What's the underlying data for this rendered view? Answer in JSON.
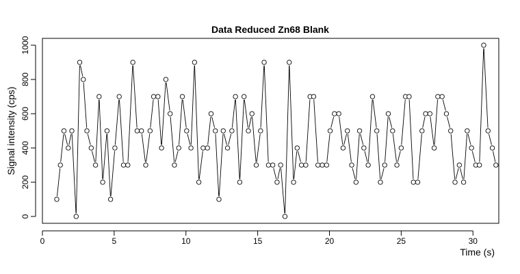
{
  "chart_data": {
    "type": "line",
    "title": "Data Reduced Zn68 Blank",
    "xlabel": "Time (s)",
    "ylabel": "Signal intensity (cps)",
    "xlim": [
      0,
      31.8
    ],
    "ylim": [
      -40,
      1040
    ],
    "x_ticks": [
      0,
      5,
      10,
      15,
      20,
      25,
      30
    ],
    "y_ticks": [
      0,
      200,
      400,
      600,
      800,
      1000
    ],
    "grid": false,
    "marker": "open-circle",
    "series": [
      {
        "values": [
          [
            1.0,
            100
          ],
          [
            1.25,
            300
          ],
          [
            1.5,
            500
          ],
          [
            1.8,
            400
          ],
          [
            2.05,
            500
          ],
          [
            2.35,
            0
          ],
          [
            2.6,
            900
          ],
          [
            2.85,
            800
          ],
          [
            3.1,
            500
          ],
          [
            3.4,
            400
          ],
          [
            3.7,
            300
          ],
          [
            3.95,
            700
          ],
          [
            4.2,
            200
          ],
          [
            4.5,
            500
          ],
          [
            4.75,
            100
          ],
          [
            5.05,
            400
          ],
          [
            5.35,
            700
          ],
          [
            5.65,
            300
          ],
          [
            5.95,
            300
          ],
          [
            6.3,
            900
          ],
          [
            6.6,
            500
          ],
          [
            6.9,
            500
          ],
          [
            7.2,
            300
          ],
          [
            7.5,
            500
          ],
          [
            7.75,
            700
          ],
          [
            8.05,
            700
          ],
          [
            8.3,
            400
          ],
          [
            8.6,
            800
          ],
          [
            8.9,
            600
          ],
          [
            9.2,
            300
          ],
          [
            9.5,
            400
          ],
          [
            9.75,
            700
          ],
          [
            10.05,
            500
          ],
          [
            10.35,
            400
          ],
          [
            10.6,
            900
          ],
          [
            10.9,
            200
          ],
          [
            11.2,
            400
          ],
          [
            11.5,
            400
          ],
          [
            11.75,
            600
          ],
          [
            12.05,
            500
          ],
          [
            12.3,
            100
          ],
          [
            12.6,
            500
          ],
          [
            12.9,
            400
          ],
          [
            13.2,
            500
          ],
          [
            13.45,
            700
          ],
          [
            13.75,
            200
          ],
          [
            14.05,
            700
          ],
          [
            14.35,
            500
          ],
          [
            14.6,
            600
          ],
          [
            14.9,
            300
          ],
          [
            15.2,
            500
          ],
          [
            15.45,
            900
          ],
          [
            15.75,
            300
          ],
          [
            16.05,
            300
          ],
          [
            16.35,
            200
          ],
          [
            16.6,
            300
          ],
          [
            16.9,
            0
          ],
          [
            17.2,
            900
          ],
          [
            17.5,
            200
          ],
          [
            17.75,
            400
          ],
          [
            18.05,
            300
          ],
          [
            18.35,
            300
          ],
          [
            18.65,
            700
          ],
          [
            18.9,
            700
          ],
          [
            19.2,
            300
          ],
          [
            19.5,
            300
          ],
          [
            19.8,
            300
          ],
          [
            20.05,
            500
          ],
          [
            20.35,
            600
          ],
          [
            20.65,
            600
          ],
          [
            20.95,
            400
          ],
          [
            21.25,
            500
          ],
          [
            21.55,
            300
          ],
          [
            21.85,
            200
          ],
          [
            22.1,
            500
          ],
          [
            22.4,
            400
          ],
          [
            22.7,
            300
          ],
          [
            23.0,
            700
          ],
          [
            23.3,
            500
          ],
          [
            23.55,
            200
          ],
          [
            23.85,
            300
          ],
          [
            24.1,
            600
          ],
          [
            24.4,
            500
          ],
          [
            24.7,
            300
          ],
          [
            25.0,
            400
          ],
          [
            25.3,
            700
          ],
          [
            25.55,
            700
          ],
          [
            25.85,
            200
          ],
          [
            26.15,
            200
          ],
          [
            26.45,
            500
          ],
          [
            26.7,
            600
          ],
          [
            27.0,
            600
          ],
          [
            27.3,
            400
          ],
          [
            27.55,
            700
          ],
          [
            27.85,
            700
          ],
          [
            28.15,
            600
          ],
          [
            28.45,
            500
          ],
          [
            28.75,
            200
          ],
          [
            29.05,
            300
          ],
          [
            29.35,
            200
          ],
          [
            29.6,
            500
          ],
          [
            29.9,
            400
          ],
          [
            30.2,
            300
          ],
          [
            30.45,
            300
          ],
          [
            30.75,
            1000
          ],
          [
            31.05,
            500
          ],
          [
            31.35,
            400
          ],
          [
            31.6,
            300
          ]
        ]
      }
    ]
  }
}
